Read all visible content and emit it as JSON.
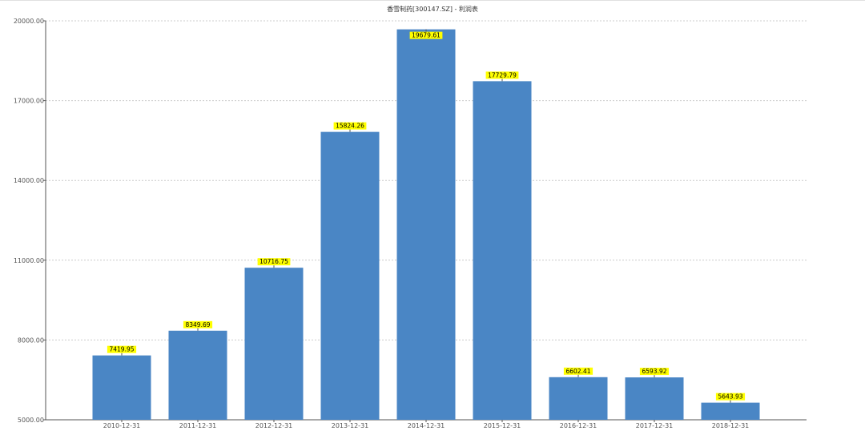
{
  "chart_data": {
    "type": "bar",
    "title": "香雪制药[300147.SZ] - 利润表",
    "categories": [
      "2010-12-31",
      "2011-12-31",
      "2012-12-31",
      "2013-12-31",
      "2014-12-31",
      "2015-12-31",
      "2016-12-31",
      "2017-12-31",
      "2018-12-31"
    ],
    "values": [
      7419.95,
      8349.69,
      10716.75,
      15824.26,
      19679.61,
      17729.79,
      6602.41,
      6593.92,
      5643.93
    ],
    "value_labels": [
      "7419.95",
      "8349.69",
      "10716.75",
      "15824.26",
      "19679.61",
      "17729.79",
      "6602.41",
      "6593.92",
      "5643.93"
    ],
    "ylim": [
      5000,
      20000
    ],
    "yticks": [
      "5000.00",
      "8000.00",
      "11000.00",
      "14000.00",
      "17000.00",
      "20000.00"
    ],
    "grid": true,
    "colors": {
      "bar": "#4a86c5",
      "label_bg": "#ffff00"
    }
  }
}
